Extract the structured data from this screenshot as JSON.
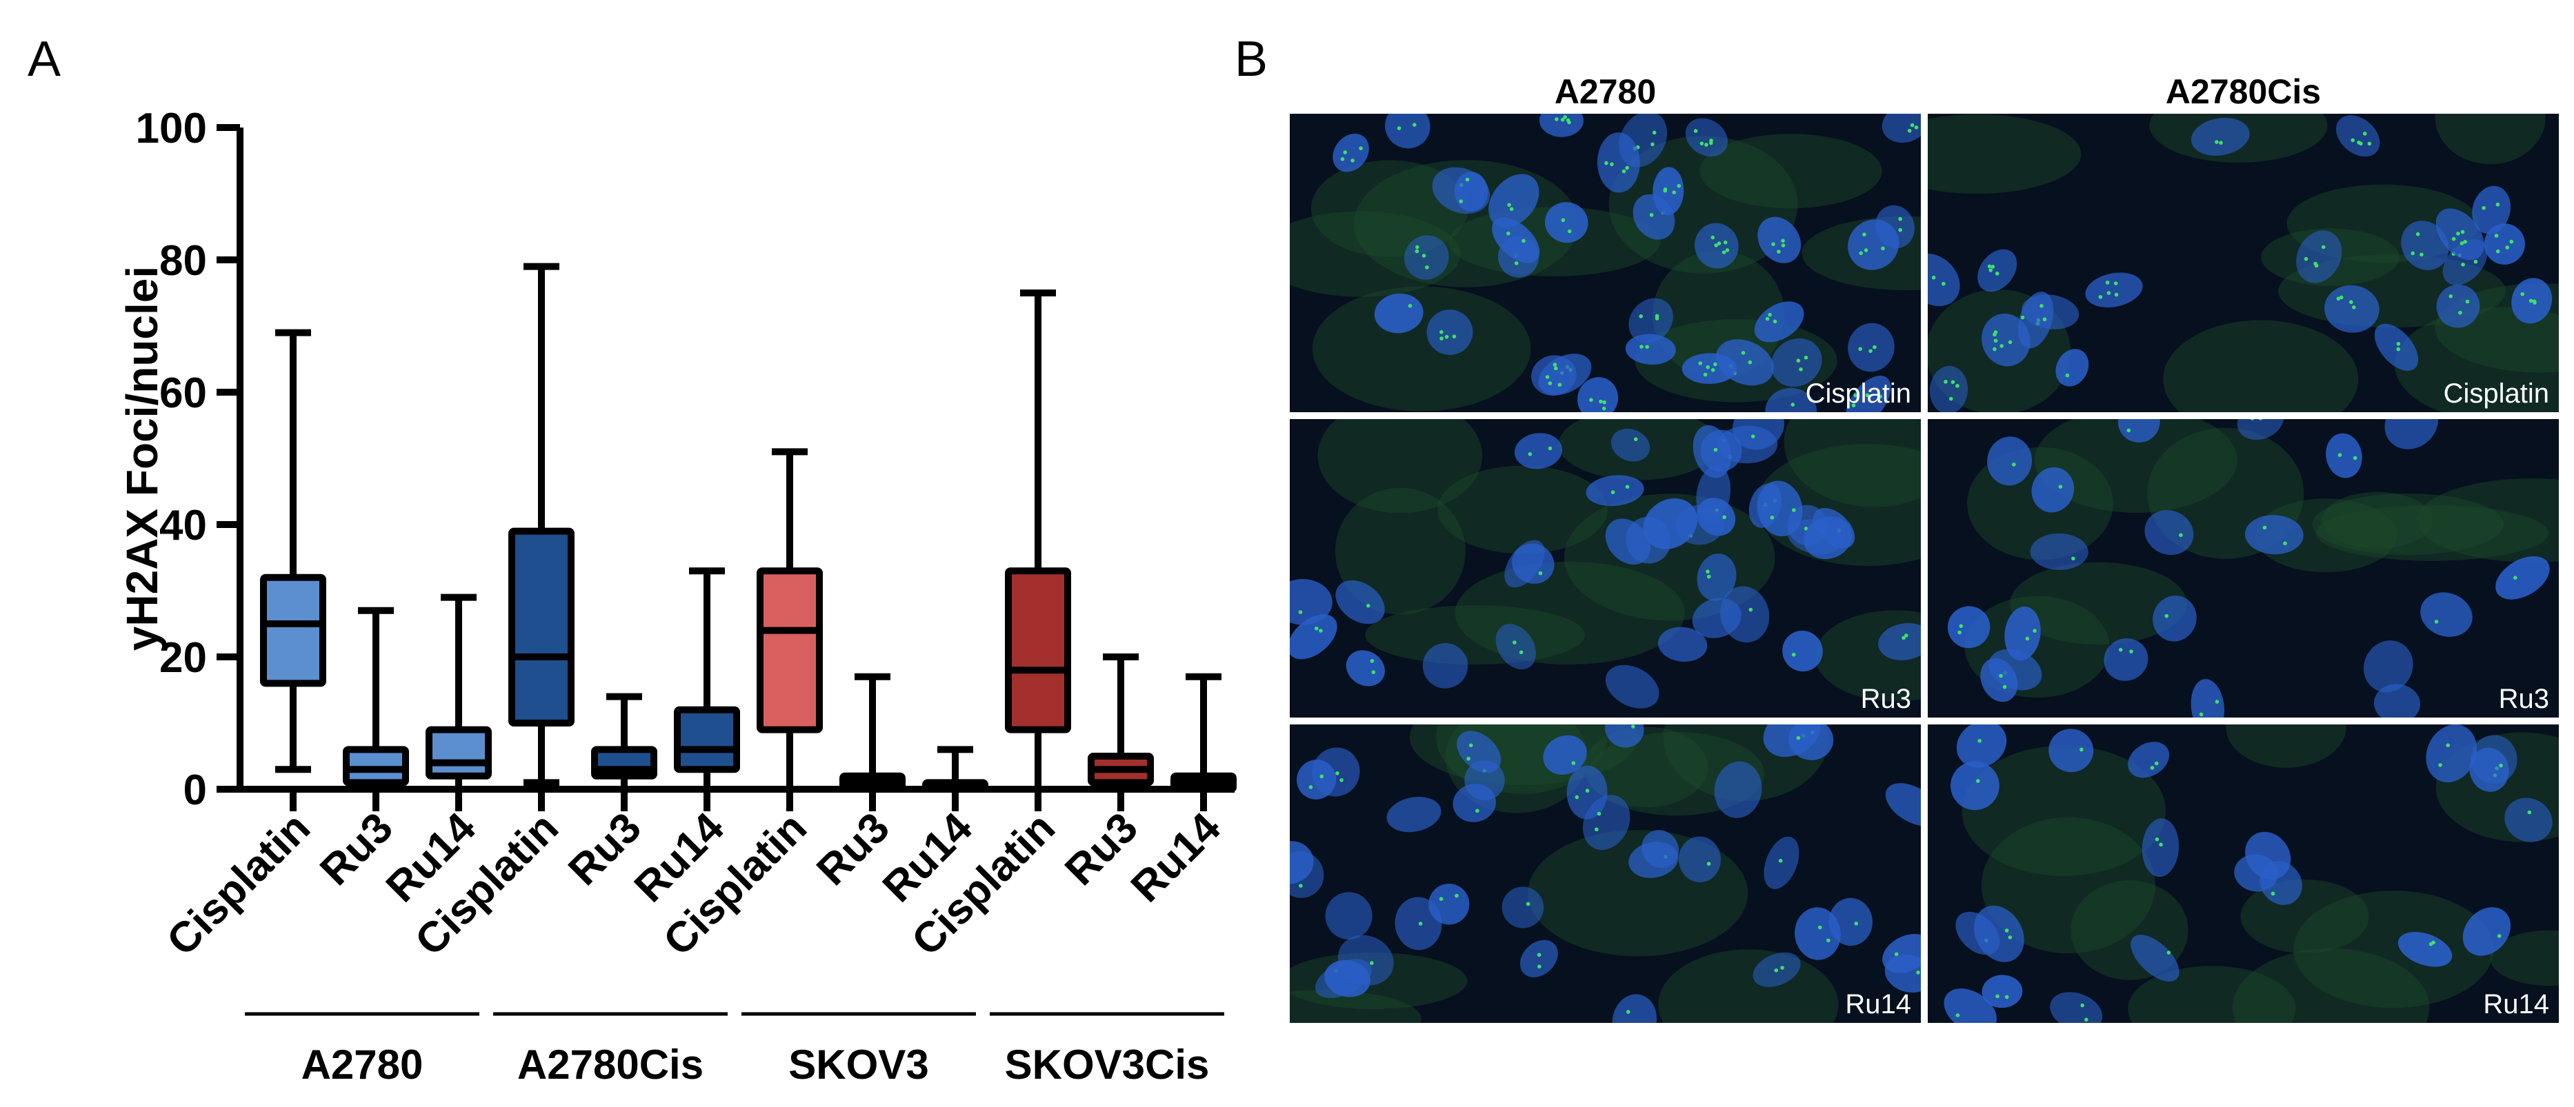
{
  "panels": {
    "a": "A",
    "b": "B"
  },
  "chart_data": {
    "type": "box",
    "title": "",
    "xlabel": "",
    "ylabel": "yH2AX Foci/nuclei",
    "ylim": [
      0,
      100
    ],
    "yticks": [
      0,
      20,
      40,
      60,
      80,
      100
    ],
    "grid": false,
    "legend": "none",
    "categories": [
      "Cisplatin",
      "Ru3",
      "Ru14",
      "Cisplatin",
      "Ru3",
      "Ru14",
      "Cisplatin",
      "Ru3",
      "Ru14",
      "Cisplatin",
      "Ru3",
      "Ru14"
    ],
    "groups": [
      {
        "name": "A2780",
        "color": "#5b8fd0"
      },
      {
        "name": "A2780Cis",
        "color": "#1f4f8e"
      },
      {
        "name": "SKOV3",
        "color": "#d9605e"
      },
      {
        "name": "SKOV3Cis",
        "color": "#a3302c"
      }
    ],
    "boxes": [
      {
        "group": 0,
        "label": "Cisplatin",
        "min": 3,
        "q1": 16,
        "median": 25,
        "q3": 32,
        "max": 69
      },
      {
        "group": 0,
        "label": "Ru3",
        "min": 0,
        "q1": 1,
        "median": 3,
        "q3": 6,
        "max": 27
      },
      {
        "group": 0,
        "label": "Ru14",
        "min": 0,
        "q1": 2,
        "median": 4,
        "q3": 9,
        "max": 29
      },
      {
        "group": 1,
        "label": "Cisplatin",
        "min": 1,
        "q1": 10,
        "median": 20,
        "q3": 39,
        "max": 79
      },
      {
        "group": 1,
        "label": "Ru3",
        "min": 0,
        "q1": 2,
        "median": 3,
        "q3": 6,
        "max": 14
      },
      {
        "group": 1,
        "label": "Ru14",
        "min": 0,
        "q1": 3,
        "median": 6,
        "q3": 12,
        "max": 33
      },
      {
        "group": 2,
        "label": "Cisplatin",
        "min": 0,
        "q1": 9,
        "median": 24,
        "q3": 33,
        "max": 51
      },
      {
        "group": 2,
        "label": "Ru3",
        "min": 0,
        "q1": 0,
        "median": 1,
        "q3": 2,
        "max": 17
      },
      {
        "group": 2,
        "label": "Ru14",
        "min": 0,
        "q1": 0,
        "median": 0,
        "q3": 1,
        "max": 6
      },
      {
        "group": 3,
        "label": "Cisplatin",
        "min": 0,
        "q1": 9,
        "median": 18,
        "q3": 33,
        "max": 75
      },
      {
        "group": 3,
        "label": "Ru3",
        "min": 0,
        "q1": 1,
        "median": 3,
        "q3": 5,
        "max": 20
      },
      {
        "group": 3,
        "label": "Ru14",
        "min": 0,
        "q1": 0,
        "median": 1,
        "q3": 2,
        "max": 17
      }
    ]
  },
  "micrographs": {
    "columns": [
      "A2780",
      "A2780Cis"
    ],
    "rows": [
      "Cisplatin",
      "Ru3",
      "Ru14"
    ],
    "nucleus_color": "#2a5fc8",
    "foci_color": "#3ee06a",
    "background_color": "#06101e"
  }
}
